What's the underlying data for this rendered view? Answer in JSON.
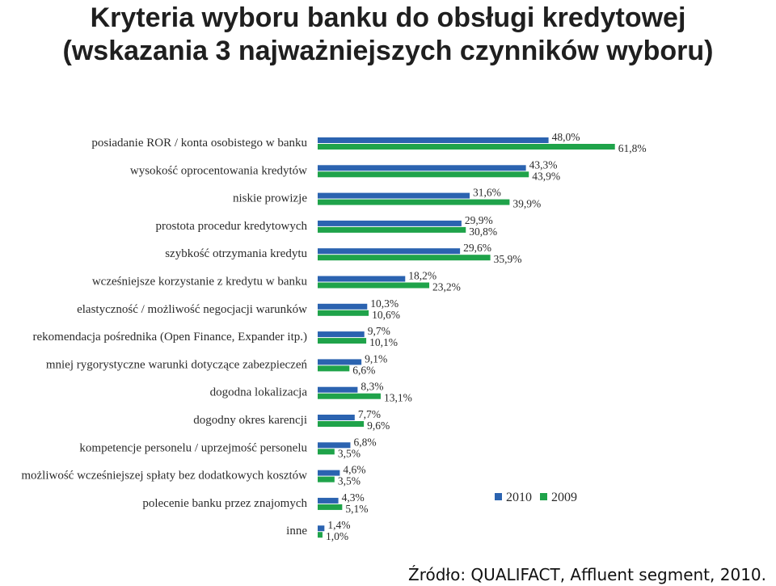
{
  "title_line1": "Kryteria wyboru banku do obsługi kredytowej",
  "title_line2": "(wskazania 3 najważniejszych czynników wyboru)",
  "source": "Źródło: QUALIFACT, Affluent segment, 2010.",
  "colors": {
    "series_2010": "#2b63b0",
    "series_2009": "#1fa34a"
  },
  "chart_data": {
    "type": "bar",
    "orientation": "horizontal",
    "title": "Kryteria wyboru banku do obsługi kredytowej (wskazania 3 najważniejszych czynników wyboru)",
    "xlabel": "",
    "ylabel": "",
    "xlim": [
      0,
      65
    ],
    "grid": false,
    "legend_position": "bottom-right",
    "categories": [
      "posiadanie ROR / konta osobistego w banku",
      "wysokość oprocentowania kredytów",
      "niskie prowizje",
      "prostota procedur kredytowych",
      "szybkość otrzymania kredytu",
      "wcześniejsze korzystanie z kredytu w banku",
      "elastyczność / możliwość negocjacji warunków",
      "rekomendacja pośrednika (Open Finance, Expander itp.)",
      "mniej rygorystyczne warunki dotyczące zabezpieczeń",
      "dogodna lokalizacja",
      "dogodny okres karencji",
      "kompetencje personelu / uprzejmość personelu",
      "możliwość wcześniejszej spłaty bez dodatkowych kosztów",
      "polecenie banku przez znajomych",
      "inne"
    ],
    "series": [
      {
        "name": "2010",
        "values": [
          48.0,
          43.3,
          31.6,
          29.9,
          29.6,
          18.2,
          10.3,
          9.7,
          9.1,
          8.3,
          7.7,
          6.8,
          4.6,
          4.3,
          1.4
        ],
        "labels": [
          "48,0%",
          "43,3%",
          "31,6%",
          "29,9%",
          "29,6%",
          "18,2%",
          "10,3%",
          "9,7%",
          "9,1%",
          "8,3%",
          "7,7%",
          "6,8%",
          "4,6%",
          "4,3%",
          "1,4%"
        ]
      },
      {
        "name": "2009",
        "values": [
          61.8,
          43.9,
          39.9,
          30.8,
          35.9,
          23.2,
          10.6,
          10.1,
          6.6,
          13.1,
          9.6,
          3.5,
          3.5,
          5.1,
          1.0
        ],
        "labels": [
          "61,8%",
          "43,9%",
          "39,9%",
          "30,8%",
          "35,9%",
          "23,2%",
          "10,6%",
          "10,1%",
          "6,6%",
          "13,1%",
          "9,6%",
          "3,5%",
          "3,5%",
          "5,1%",
          "1,0%"
        ]
      }
    ]
  }
}
